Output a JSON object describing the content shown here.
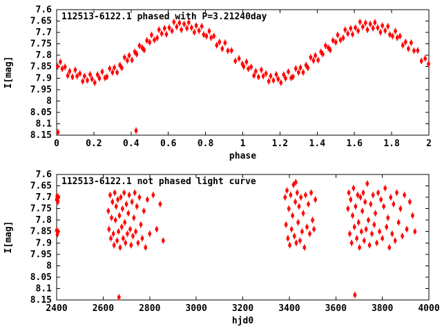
{
  "window": {
    "background": "#ffffff"
  },
  "colors": {
    "point": "#ff0000",
    "axis": "#000000",
    "text": "#000000",
    "background": "#ffffff"
  },
  "chart_data": [
    {
      "type": "scatter",
      "title": "112513-6122.1 phased with P=3.21240day",
      "xlabel": "phase",
      "ylabel": "I[mag]",
      "xlim": [
        0,
        2
      ],
      "ylim": [
        7.6,
        8.15
      ],
      "y_inverted": true,
      "grid": false,
      "legend": "none",
      "marker_color": "#ff0000",
      "marker": "filled-square-with-error-bar",
      "xticks": [
        0,
        0.2,
        0.4,
        0.6,
        0.8,
        1,
        1.2,
        1.4,
        1.6,
        1.8,
        2
      ],
      "xtick_labels": [
        "0",
        "0.2",
        "0.4",
        "0.6",
        "0.8",
        "1",
        "1.2",
        "1.4",
        "1.6",
        "1.8",
        "2"
      ],
      "yticks": [
        7.6,
        7.65,
        7.7,
        7.75,
        7.8,
        7.85,
        7.9,
        7.95,
        8,
        8.05,
        8.1,
        8.15
      ],
      "ytick_labels": [
        "7.6",
        "7.65",
        "7.7",
        "7.75",
        "7.8",
        "7.85",
        "7.9",
        "7.95",
        "8",
        "8.05",
        "8.1",
        "8.15"
      ],
      "points": [
        [
          0.005,
          7.849
        ],
        [
          0.02,
          7.829
        ],
        [
          0.03,
          7.859
        ],
        [
          0.045,
          7.851
        ],
        [
          0.06,
          7.889
        ],
        [
          0.07,
          7.87
        ],
        [
          0.085,
          7.895
        ],
        [
          0.1,
          7.864
        ],
        [
          0.11,
          7.891
        ],
        [
          0.125,
          7.88
        ],
        [
          0.14,
          7.914
        ],
        [
          0.15,
          7.891
        ],
        [
          0.165,
          7.91
        ],
        [
          0.18,
          7.884
        ],
        [
          0.19,
          7.904
        ],
        [
          0.205,
          7.92
        ],
        [
          0.22,
          7.885
        ],
        [
          0.23,
          7.901
        ],
        [
          0.245,
          7.872
        ],
        [
          0.26,
          7.899
        ],
        [
          0.27,
          7.894
        ],
        [
          0.285,
          7.858
        ],
        [
          0.3,
          7.875
        ],
        [
          0.31,
          7.854
        ],
        [
          0.325,
          7.875
        ],
        [
          0.34,
          7.843
        ],
        [
          0.35,
          7.855
        ],
        [
          0.365,
          7.809
        ],
        [
          0.38,
          7.823
        ],
        [
          0.39,
          7.801
        ],
        [
          0.405,
          7.821
        ],
        [
          0.42,
          7.785
        ],
        [
          0.43,
          7.795
        ],
        [
          0.445,
          7.758
        ],
        [
          0.46,
          7.767
        ],
        [
          0.47,
          7.777
        ],
        [
          0.485,
          7.735
        ],
        [
          0.5,
          7.743
        ],
        [
          0.51,
          7.711
        ],
        [
          0.525,
          7.733
        ],
        [
          0.54,
          7.724
        ],
        [
          0.55,
          7.688
        ],
        [
          0.565,
          7.705
        ],
        [
          0.58,
          7.682
        ],
        [
          0.59,
          7.708
        ],
        [
          0.605,
          7.679
        ],
        [
          0.62,
          7.693
        ],
        [
          0.63,
          7.654
        ],
        [
          0.645,
          7.675
        ],
        [
          0.66,
          7.658
        ],
        [
          0.67,
          7.688
        ],
        [
          0.685,
          7.663
        ],
        [
          0.7,
          7.681
        ],
        [
          0.71,
          7.656
        ],
        [
          0.725,
          7.679
        ],
        [
          0.74,
          7.699
        ],
        [
          0.75,
          7.67
        ],
        [
          0.765,
          7.692
        ],
        [
          0.78,
          7.673
        ],
        [
          0.79,
          7.709
        ],
        [
          0.805,
          7.716
        ],
        [
          0.82,
          7.694
        ],
        [
          0.83,
          7.723
        ],
        [
          0.845,
          7.716
        ],
        [
          0.86,
          7.756
        ],
        [
          0.875,
          7.742
        ],
        [
          0.89,
          7.771
        ],
        [
          0.905,
          7.745
        ],
        [
          0.92,
          7.78
        ],
        [
          0.94,
          7.779
        ],
        [
          0.96,
          7.825
        ],
        [
          0.98,
          7.814
        ],
        [
          0.998,
          7.838
        ],
        [
          1.005,
          7.849
        ],
        [
          1.02,
          7.829
        ],
        [
          1.03,
          7.859
        ],
        [
          1.045,
          7.851
        ],
        [
          1.06,
          7.889
        ],
        [
          1.07,
          7.87
        ],
        [
          1.085,
          7.895
        ],
        [
          1.1,
          7.864
        ],
        [
          1.11,
          7.891
        ],
        [
          1.125,
          7.88
        ],
        [
          1.14,
          7.914
        ],
        [
          1.15,
          7.891
        ],
        [
          1.165,
          7.91
        ],
        [
          1.18,
          7.884
        ],
        [
          1.19,
          7.904
        ],
        [
          1.205,
          7.92
        ],
        [
          1.22,
          7.885
        ],
        [
          1.23,
          7.901
        ],
        [
          1.245,
          7.872
        ],
        [
          1.26,
          7.899
        ],
        [
          1.27,
          7.894
        ],
        [
          1.285,
          7.858
        ],
        [
          1.3,
          7.875
        ],
        [
          1.31,
          7.854
        ],
        [
          1.325,
          7.875
        ],
        [
          1.34,
          7.843
        ],
        [
          1.35,
          7.855
        ],
        [
          1.365,
          7.809
        ],
        [
          1.38,
          7.823
        ],
        [
          1.39,
          7.801
        ],
        [
          1.405,
          7.821
        ],
        [
          1.42,
          7.785
        ],
        [
          1.43,
          7.795
        ],
        [
          1.445,
          7.758
        ],
        [
          1.46,
          7.767
        ],
        [
          1.47,
          7.777
        ],
        [
          1.485,
          7.735
        ],
        [
          1.5,
          7.743
        ],
        [
          1.51,
          7.711
        ],
        [
          1.525,
          7.733
        ],
        [
          1.54,
          7.724
        ],
        [
          1.55,
          7.688
        ],
        [
          1.565,
          7.705
        ],
        [
          1.58,
          7.682
        ],
        [
          1.59,
          7.708
        ],
        [
          1.605,
          7.679
        ],
        [
          1.62,
          7.693
        ],
        [
          1.63,
          7.654
        ],
        [
          1.645,
          7.675
        ],
        [
          1.66,
          7.658
        ],
        [
          1.67,
          7.688
        ],
        [
          1.685,
          7.663
        ],
        [
          1.7,
          7.681
        ],
        [
          1.71,
          7.656
        ],
        [
          1.725,
          7.679
        ],
        [
          1.74,
          7.699
        ],
        [
          1.75,
          7.67
        ],
        [
          1.765,
          7.692
        ],
        [
          1.78,
          7.673
        ],
        [
          1.79,
          7.709
        ],
        [
          1.805,
          7.716
        ],
        [
          1.82,
          7.694
        ],
        [
          1.83,
          7.723
        ],
        [
          1.845,
          7.716
        ],
        [
          1.86,
          7.756
        ],
        [
          1.875,
          7.742
        ],
        [
          1.89,
          7.771
        ],
        [
          1.905,
          7.745
        ],
        [
          1.92,
          7.78
        ],
        [
          1.94,
          7.779
        ],
        [
          1.96,
          7.825
        ],
        [
          1.98,
          7.814
        ],
        [
          1.998,
          7.838
        ],
        [
          0.007,
          8.137
        ],
        [
          0.427,
          8.13
        ]
      ]
    },
    {
      "type": "scatter",
      "title": "112513-6122.1 not phased light curve",
      "xlabel": "hjd0",
      "ylabel": "I[mag]",
      "xlim": [
        2400,
        4000
      ],
      "ylim": [
        7.6,
        8.15
      ],
      "y_inverted": true,
      "grid": false,
      "legend": "none",
      "marker_color": "#ff0000",
      "marker": "filled-square-with-error-bar",
      "xticks": [
        2400,
        2600,
        2800,
        3000,
        3200,
        3400,
        3600,
        3800,
        4000
      ],
      "xtick_labels": [
        "2400",
        "2600",
        "2800",
        "3000",
        "3200",
        "3400",
        "3600",
        "3800",
        "4000"
      ],
      "yticks": [
        7.6,
        7.65,
        7.7,
        7.75,
        7.8,
        7.85,
        7.9,
        7.95,
        8,
        8.05,
        8.1,
        8.15
      ],
      "ytick_labels": [
        "7.6",
        "7.65",
        "7.7",
        "7.75",
        "7.8",
        "7.85",
        "7.9",
        "7.95",
        "8",
        "8.05",
        "8.1",
        "8.15"
      ],
      "points": [
        [
          2400,
          7.71
        ],
        [
          2402,
          7.695
        ],
        [
          2405,
          7.72
        ],
        [
          2408,
          7.7
        ],
        [
          2400,
          7.845
        ],
        [
          2403,
          7.862
        ],
        [
          2406,
          7.85
        ],
        [
          2622,
          7.76
        ],
        [
          2625,
          7.84
        ],
        [
          2630,
          7.69
        ],
        [
          2633,
          7.88
        ],
        [
          2636,
          7.79
        ],
        [
          2640,
          7.72
        ],
        [
          2644,
          7.86
        ],
        [
          2647,
          7.91
        ],
        [
          2650,
          7.68
        ],
        [
          2653,
          7.8
        ],
        [
          2656,
          7.74
        ],
        [
          2660,
          7.89
        ],
        [
          2663,
          7.71
        ],
        [
          2666,
          7.85
        ],
        [
          2670,
          7.78
        ],
        [
          2673,
          7.92
        ],
        [
          2676,
          7.7
        ],
        [
          2680,
          7.83
        ],
        [
          2683,
          7.75
        ],
        [
          2686,
          7.88
        ],
        [
          2690,
          7.68
        ],
        [
          2693,
          7.81
        ],
        [
          2696,
          7.9
        ],
        [
          2700,
          7.73
        ],
        [
          2704,
          7.86
        ],
        [
          2708,
          7.77
        ],
        [
          2712,
          7.69
        ],
        [
          2716,
          7.84
        ],
        [
          2720,
          7.91
        ],
        [
          2724,
          7.72
        ],
        [
          2728,
          7.87
        ],
        [
          2732,
          7.79
        ],
        [
          2736,
          7.68
        ],
        [
          2740,
          7.85
        ],
        [
          2745,
          7.74
        ],
        [
          2750,
          7.9
        ],
        [
          2756,
          7.7
        ],
        [
          2762,
          7.82
        ],
        [
          2768,
          7.88
        ],
        [
          2775,
          7.76
        ],
        [
          2782,
          7.92
        ],
        [
          2790,
          7.71
        ],
        [
          2800,
          7.86
        ],
        [
          2815,
          7.69
        ],
        [
          2830,
          7.84
        ],
        [
          2845,
          7.73
        ],
        [
          2858,
          7.89
        ],
        [
          3382,
          7.7
        ],
        [
          3386,
          7.82
        ],
        [
          3390,
          7.67
        ],
        [
          3394,
          7.88
        ],
        [
          3398,
          7.75
        ],
        [
          3402,
          7.91
        ],
        [
          3406,
          7.69
        ],
        [
          3410,
          7.84
        ],
        [
          3414,
          7.78
        ],
        [
          3418,
          7.645
        ],
        [
          3422,
          7.87
        ],
        [
          3426,
          7.72
        ],
        [
          3428,
          7.634
        ],
        [
          3430,
          7.9
        ],
        [
          3434,
          7.68
        ],
        [
          3438,
          7.81
        ],
        [
          3442,
          7.74
        ],
        [
          3446,
          7.89
        ],
        [
          3450,
          7.7
        ],
        [
          3455,
          7.85
        ],
        [
          3460,
          7.77
        ],
        [
          3465,
          7.92
        ],
        [
          3470,
          7.69
        ],
        [
          3476,
          7.83
        ],
        [
          3482,
          7.73
        ],
        [
          3488,
          7.86
        ],
        [
          3494,
          7.68
        ],
        [
          3500,
          7.8
        ],
        [
          3506,
          7.84
        ],
        [
          3512,
          7.71
        ],
        [
          3652,
          7.75
        ],
        [
          3656,
          7.68
        ],
        [
          3660,
          7.86
        ],
        [
          3664,
          7.71
        ],
        [
          3668,
          7.9
        ],
        [
          3672,
          7.78
        ],
        [
          3676,
          7.66
        ],
        [
          3680,
          7.83
        ],
        [
          3685,
          7.74
        ],
        [
          3690,
          7.88
        ],
        [
          3694,
          7.69
        ],
        [
          3698,
          7.81
        ],
        [
          3702,
          7.92
        ],
        [
          3706,
          7.7
        ],
        [
          3710,
          7.85
        ],
        [
          3714,
          7.76
        ],
        [
          3718,
          7.68
        ],
        [
          3722,
          7.89
        ],
        [
          3726,
          7.72
        ],
        [
          3730,
          7.84
        ],
        [
          3735,
          7.64
        ],
        [
          3740,
          7.8
        ],
        [
          3745,
          7.91
        ],
        [
          3750,
          7.73
        ],
        [
          3755,
          7.86
        ],
        [
          3760,
          7.69
        ],
        [
          3765,
          7.82
        ],
        [
          3770,
          7.77
        ],
        [
          3776,
          7.9
        ],
        [
          3782,
          7.68
        ],
        [
          3788,
          7.85
        ],
        [
          3794,
          7.71
        ],
        [
          3800,
          7.88
        ],
        [
          3806,
          7.74
        ],
        [
          3812,
          7.66
        ],
        [
          3818,
          7.83
        ],
        [
          3824,
          7.79
        ],
        [
          3830,
          7.92
        ],
        [
          3836,
          7.7
        ],
        [
          3842,
          7.86
        ],
        [
          3848,
          7.73
        ],
        [
          3855,
          7.89
        ],
        [
          3862,
          7.68
        ],
        [
          3870,
          7.81
        ],
        [
          3878,
          7.75
        ],
        [
          3886,
          7.87
        ],
        [
          3895,
          7.69
        ],
        [
          3905,
          7.84
        ],
        [
          3918,
          7.72
        ],
        [
          3930,
          7.78
        ],
        [
          3940,
          7.85
        ],
        [
          2668,
          8.138
        ],
        [
          3682,
          8.128
        ]
      ]
    }
  ]
}
